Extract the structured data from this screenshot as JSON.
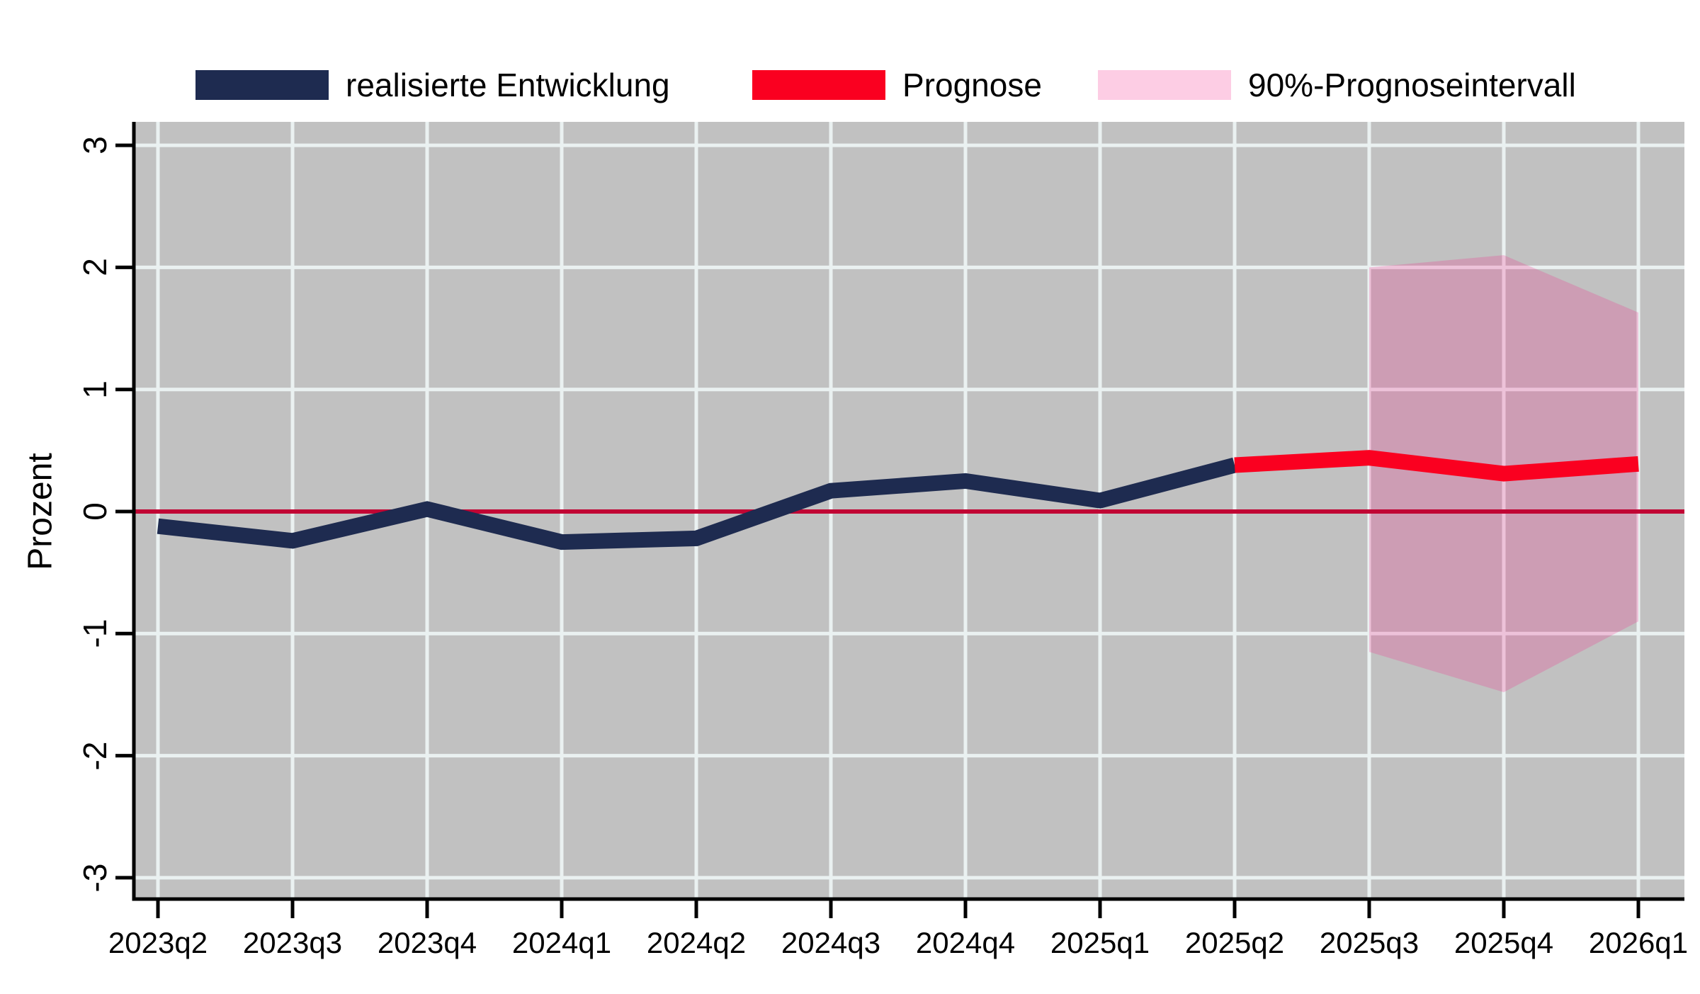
{
  "figure": {
    "ylabel": "Prozent",
    "background": "#FFFFFF"
  },
  "legend": {
    "items": [
      {
        "label": "realisierte Entwicklung",
        "color": "#1E2B50",
        "kind": "line"
      },
      {
        "label": "Prognose",
        "color": "#FA0020",
        "kind": "line"
      },
      {
        "label": "90%-Prognoseintervall",
        "color": "rgba(245,40,140,0.23)",
        "kind": "area"
      }
    ]
  },
  "chart_data": {
    "type": "line",
    "title": "",
    "xlabel": "",
    "ylabel": "Prozent",
    "categories": [
      "2023q2",
      "2023q3",
      "2023q4",
      "2024q1",
      "2024q2",
      "2024q3",
      "2024q4",
      "2025q1",
      "2025q2",
      "2025q3",
      "2025q4",
      "2026q1"
    ],
    "y_ticks": [
      3,
      2,
      1,
      0,
      -1,
      -2,
      -3
    ],
    "ylim": [
      -3.2,
      3.2
    ],
    "grid": true,
    "zero_line": 0,
    "legend_position": "top",
    "series": [
      {
        "name": "realisierte Entwicklung",
        "color": "#1E2B50",
        "x": [
          "2023q2",
          "2023q3",
          "2023q4",
          "2024q1",
          "2024q2",
          "2024q3",
          "2024q4",
          "2025q1",
          "2025q2"
        ],
        "values": [
          -0.12,
          -0.24,
          0.02,
          -0.25,
          -0.22,
          0.17,
          0.25,
          0.09,
          0.38
        ]
      },
      {
        "name": "Prognose",
        "color": "#FA0020",
        "x": [
          "2025q2",
          "2025q3",
          "2025q4",
          "2026q1"
        ],
        "values": [
          0.38,
          0.44,
          0.31,
          0.39
        ]
      }
    ],
    "interval": {
      "name": "90%-Prognoseintervall",
      "color": "rgba(245,40,140,0.23)",
      "x": [
        "2025q3",
        "2025q4",
        "2026q1"
      ],
      "upper": [
        2.0,
        2.1,
        1.63
      ],
      "lower": [
        -1.15,
        -1.48,
        -0.9
      ]
    },
    "colors": {
      "plot_bg": "#C1C1C1",
      "gridline": "#EAF1F1",
      "zero_line": "#C10534",
      "axis": "#000000"
    }
  }
}
